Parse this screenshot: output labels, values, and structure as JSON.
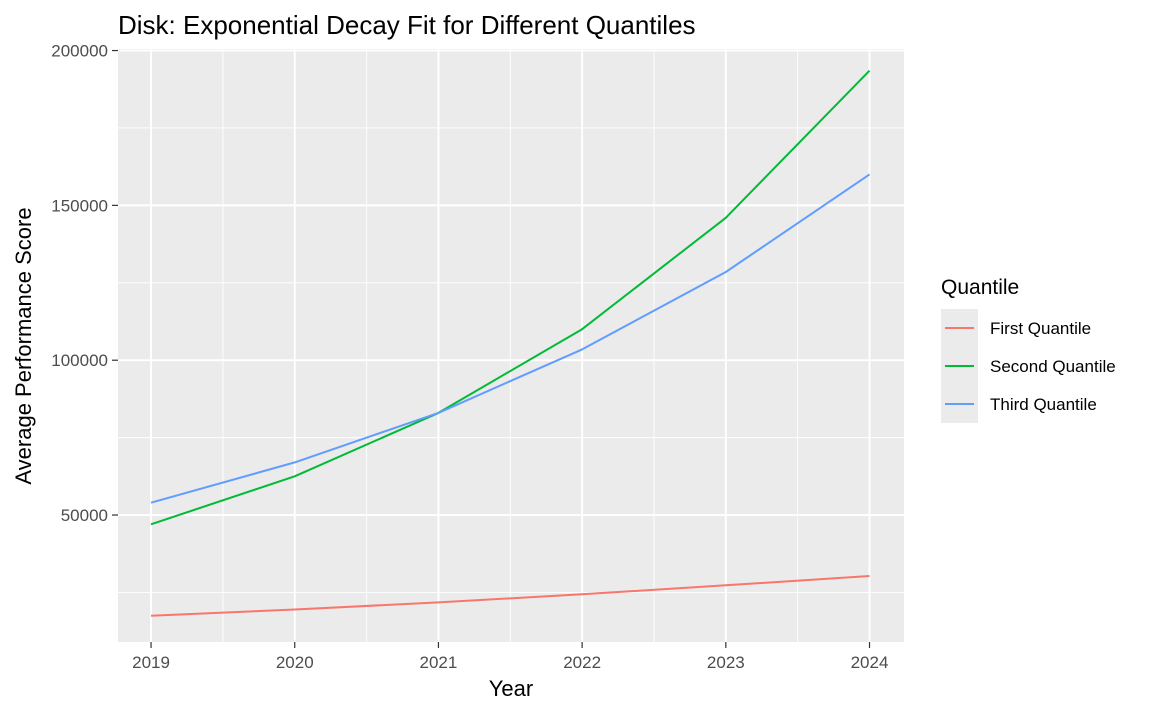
{
  "chart_data": {
    "type": "line",
    "title": "Disk: Exponential Decay Fit for Different Quantiles",
    "xlabel": "Year",
    "ylabel": "Average Performance Score",
    "x": [
      2019,
      2020,
      2021,
      2022,
      2023,
      2024
    ],
    "x_tick_labels": [
      "2019",
      "2020",
      "2021",
      "2022",
      "2023",
      "2024"
    ],
    "xlim": [
      2018.77,
      2024.24
    ],
    "ylim": [
      9000,
      200500
    ],
    "y_ticks": [
      50000,
      100000,
      150000,
      200000
    ],
    "y_tick_labels": [
      "50000",
      "100000",
      "150000",
      "200000"
    ],
    "grid": true,
    "legend": {
      "title": "Quantile",
      "position": "right"
    },
    "series": [
      {
        "name": "First Quantile",
        "color": "#F8766D",
        "values": [
          17500,
          19500,
          21800,
          24400,
          27300,
          30300
        ]
      },
      {
        "name": "Second Quantile",
        "color": "#00BA38",
        "values": [
          47000,
          62500,
          83000,
          110000,
          146000,
          193500
        ]
      },
      {
        "name": "Third Quantile",
        "color": "#619CFF",
        "values": [
          54000,
          67000,
          83000,
          103500,
          128500,
          160000
        ]
      }
    ]
  }
}
